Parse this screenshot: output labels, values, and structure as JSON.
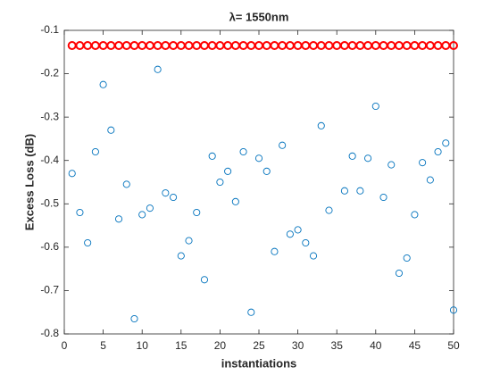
{
  "chart_data": {
    "type": "scatter",
    "title": "λ= 1550nm",
    "xlabel": "instantiations",
    "ylabel": "Excess Loss (dB)",
    "x": [
      1,
      2,
      3,
      4,
      5,
      6,
      7,
      8,
      9,
      10,
      11,
      12,
      13,
      14,
      15,
      16,
      17,
      18,
      19,
      20,
      21,
      22,
      23,
      24,
      25,
      26,
      27,
      28,
      29,
      30,
      31,
      32,
      33,
      34,
      35,
      36,
      37,
      38,
      39,
      40,
      41,
      42,
      43,
      44,
      45,
      46,
      47,
      48,
      49,
      50
    ],
    "series": [
      {
        "color": "#ff0000",
        "values": [
          -0.135,
          -0.135,
          -0.135,
          -0.135,
          -0.135,
          -0.135,
          -0.135,
          -0.135,
          -0.135,
          -0.135,
          -0.135,
          -0.135,
          -0.135,
          -0.135,
          -0.135,
          -0.135,
          -0.135,
          -0.135,
          -0.135,
          -0.135,
          -0.135,
          -0.135,
          -0.135,
          -0.135,
          -0.135,
          -0.135,
          -0.135,
          -0.135,
          -0.135,
          -0.135,
          -0.135,
          -0.135,
          -0.135,
          -0.135,
          -0.135,
          -0.135,
          -0.135,
          -0.135,
          -0.135,
          -0.135,
          -0.135,
          -0.135,
          -0.135,
          -0.135,
          -0.135,
          -0.135,
          -0.135,
          -0.135,
          -0.135,
          -0.135
        ]
      },
      {
        "color": "#0072bd",
        "values": [
          -0.43,
          -0.52,
          -0.59,
          -0.38,
          -0.225,
          -0.33,
          -0.535,
          -0.455,
          -0.765,
          -0.525,
          -0.51,
          -0.19,
          -0.475,
          -0.485,
          -0.62,
          -0.585,
          -0.52,
          -0.675,
          -0.39,
          -0.45,
          -0.425,
          -0.495,
          -0.38,
          -0.75,
          -0.395,
          -0.425,
          -0.61,
          -0.365,
          -0.57,
          -0.56,
          -0.59,
          -0.62,
          -0.32,
          -0.515,
          null,
          -0.47,
          -0.39,
          -0.47,
          -0.395,
          -0.275,
          -0.485,
          -0.41,
          -0.66,
          -0.625,
          -0.525,
          -0.405,
          -0.445,
          -0.38,
          -0.36,
          -0.745
        ]
      }
    ],
    "xlim": [
      0,
      50
    ],
    "xticks": [
      0,
      5,
      10,
      15,
      20,
      25,
      30,
      35,
      40,
      45,
      50
    ],
    "ylim": [
      -0.8,
      -0.1
    ],
    "yticks": [
      -0.8,
      -0.7,
      -0.6,
      -0.5,
      -0.4,
      -0.3,
      -0.2,
      -0.1
    ]
  }
}
